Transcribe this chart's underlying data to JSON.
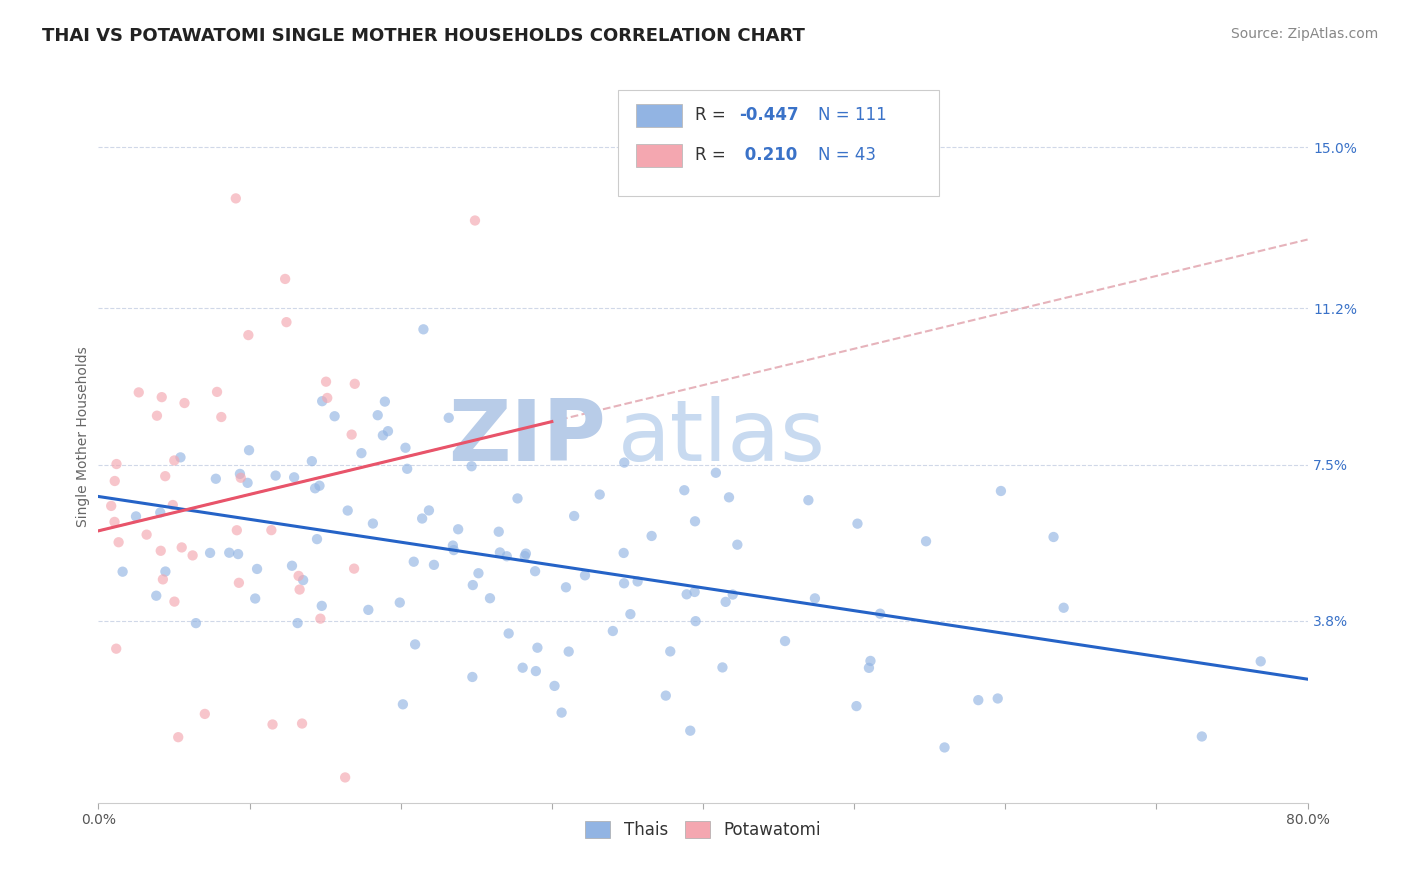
{
  "title": "THAI VS POTAWATOMI SINGLE MOTHER HOUSEHOLDS CORRELATION CHART",
  "source": "Source: ZipAtlas.com",
  "ylabel": "Single Mother Households",
  "xlim": [
    0.0,
    0.8
  ],
  "ylim": [
    -0.005,
    0.168
  ],
  "yticks_right": [
    0.038,
    0.075,
    0.112,
    0.15
  ],
  "ytick_labels_right": [
    "3.8%",
    "7.5%",
    "11.2%",
    "15.0%"
  ],
  "thai_color": "#92b4e3",
  "potawatomi_color": "#f4a7b0",
  "thai_line_color": "#2563c7",
  "potawatomi_line_color": "#e8546a",
  "potawatomi_dash_color": "#e0a0aa",
  "R_thai": -0.447,
  "N_thai": 111,
  "R_potawatomi": 0.21,
  "N_potawatomi": 43,
  "legend_label_thai": "Thais",
  "legend_label_potawatomi": "Potawatomi",
  "watermark_zip": "ZIP",
  "watermark_atlas": "atlas",
  "watermark_color": "#c8d8f0",
  "title_fontsize": 13,
  "axis_label_fontsize": 10,
  "tick_fontsize": 10,
  "legend_fontsize": 12,
  "source_fontsize": 10,
  "thai_seed": 42,
  "potawatomi_seed": 7,
  "background_color": "#ffffff",
  "grid_color": "#d0d8e8",
  "scatter_alpha": 0.65,
  "scatter_size": 55
}
